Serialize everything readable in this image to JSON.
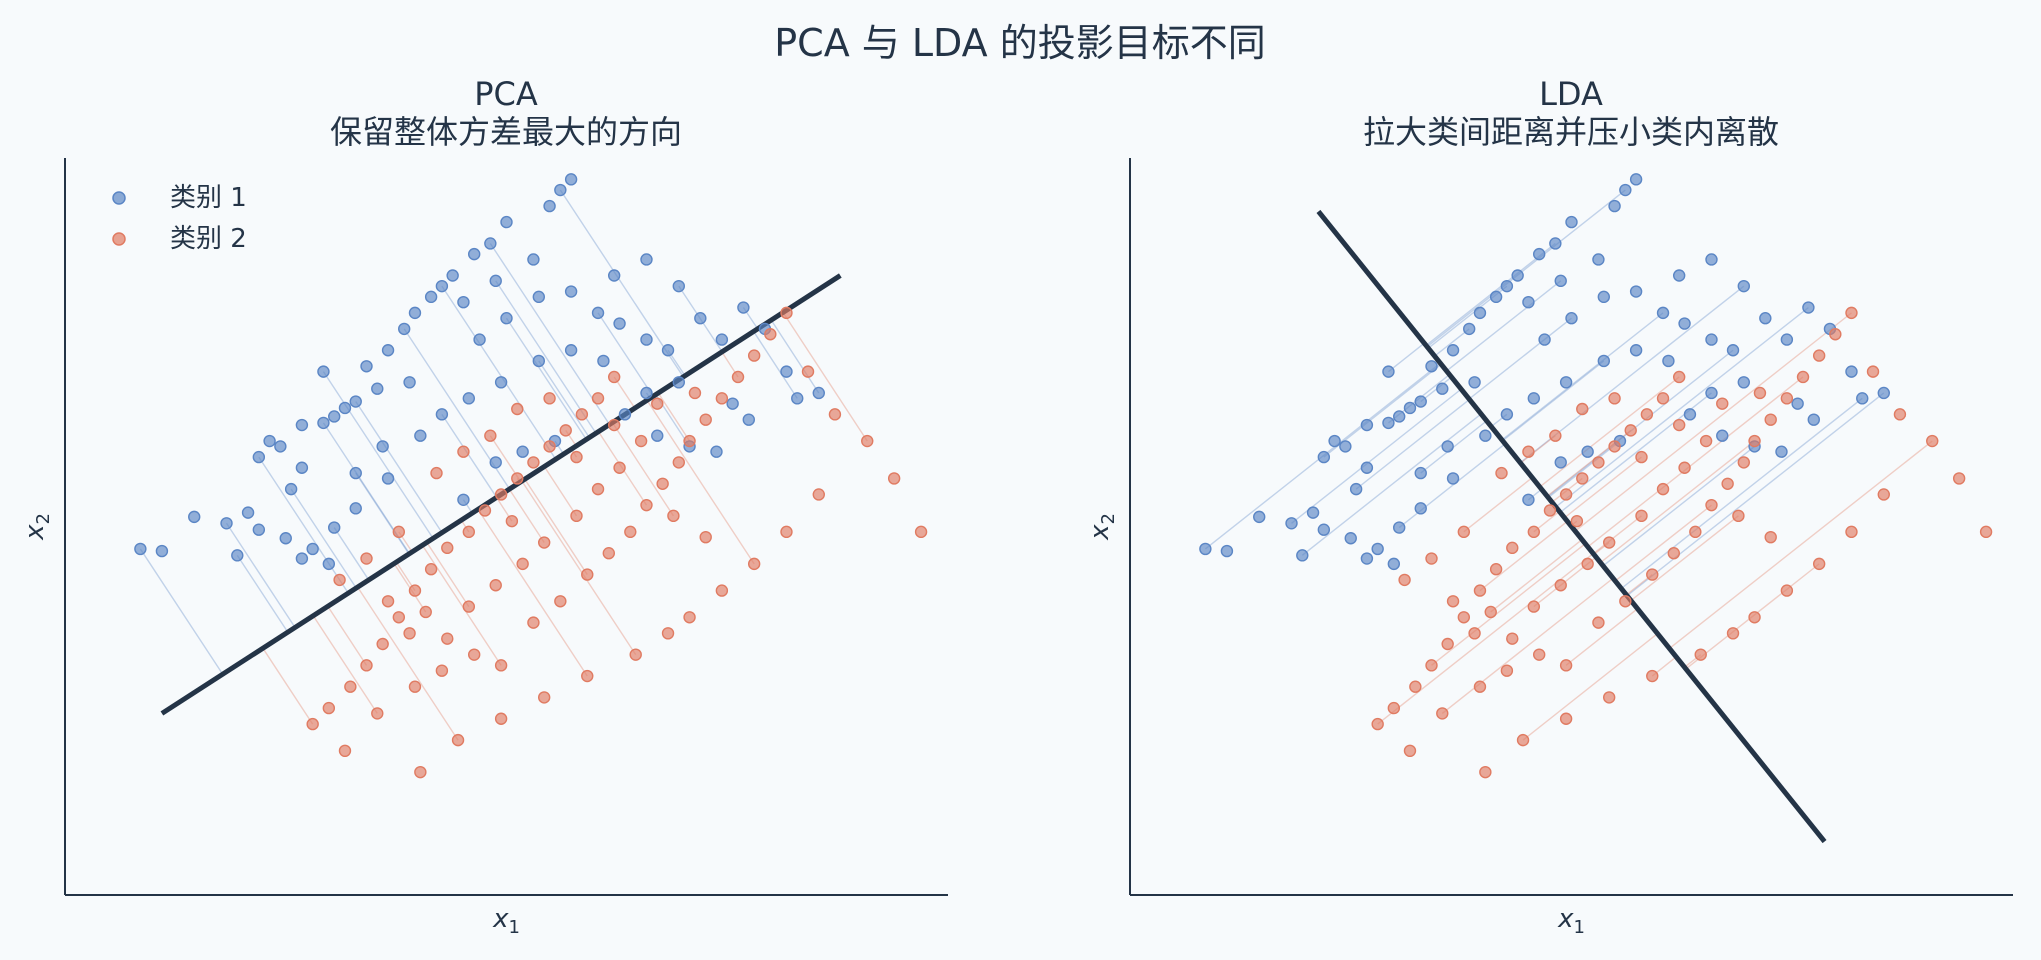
{
  "suptitle": "PCA 与 LDA 的投影目标不同",
  "colors": {
    "class1": "#5b86c5",
    "class2": "#e07b62",
    "axis": "#243447",
    "line": "#243447",
    "background": "#f7fafc"
  },
  "legend": {
    "labels": [
      "类别 1",
      "类别 2"
    ],
    "position": "top-left"
  },
  "chart_data": [
    {
      "type": "scatter",
      "title": "PCA",
      "subtitle": "保留整体方差最大的方向",
      "xlabel": "x₁",
      "ylabel": "x₂",
      "xlim": [
        -3.5,
        4.7
      ],
      "ylim": [
        -3.7,
        3.2
      ],
      "grid": false,
      "legend": "top-left",
      "projection_line": {
        "p1": [
          -2.6,
          -2.0
        ],
        "p2": [
          3.7,
          2.1
        ]
      },
      "projection_direction": [
        0.838,
        0.546
      ],
      "series": [
        {
          "name": "类别 1",
          "points": [
            [
              -2.8,
              -0.46
            ],
            [
              -2.6,
              -0.48
            ],
            [
              -2.3,
              -0.16
            ],
            [
              -2.0,
              -0.22
            ],
            [
              -1.8,
              -0.12
            ],
            [
              -1.7,
              -0.28
            ],
            [
              -1.9,
              -0.52
            ],
            [
              -1.45,
              -0.36
            ],
            [
              -1.2,
              -0.46
            ],
            [
              -1.0,
              -0.26
            ],
            [
              -0.8,
              -0.08
            ],
            [
              -0.5,
              0.2
            ],
            [
              -1.4,
              0.1
            ],
            [
              -1.3,
              0.3
            ],
            [
              -1.5,
              0.5
            ],
            [
              -1.7,
              0.4
            ],
            [
              -1.6,
              0.55
            ],
            [
              -1.3,
              0.7
            ],
            [
              -1.1,
              0.72
            ],
            [
              -1.0,
              0.78
            ],
            [
              -0.9,
              0.86
            ],
            [
              -0.8,
              0.92
            ],
            [
              -0.6,
              1.04
            ],
            [
              -0.3,
              1.1
            ],
            [
              -1.1,
              1.2
            ],
            [
              -0.7,
              1.25
            ],
            [
              -0.5,
              1.4
            ],
            [
              -0.35,
              1.6
            ],
            [
              -0.25,
              1.75
            ],
            [
              -0.1,
              1.9
            ],
            [
              0.0,
              2.0
            ],
            [
              0.1,
              2.1
            ],
            [
              0.3,
              2.3
            ],
            [
              0.45,
              2.4
            ],
            [
              0.6,
              2.6
            ],
            [
              1.0,
              2.75
            ],
            [
              1.1,
              2.9
            ],
            [
              1.2,
              3.0
            ],
            [
              0.85,
              2.25
            ],
            [
              0.5,
              2.05
            ],
            [
              0.2,
              1.85
            ],
            [
              0.35,
              1.5
            ],
            [
              0.6,
              1.7
            ],
            [
              0.9,
              1.9
            ],
            [
              1.2,
              1.95
            ],
            [
              1.45,
              1.75
            ],
            [
              1.65,
              1.65
            ],
            [
              1.9,
              1.5
            ],
            [
              2.1,
              1.4
            ],
            [
              1.6,
              2.1
            ],
            [
              1.9,
              2.25
            ],
            [
              2.2,
              2.0
            ],
            [
              2.4,
              1.7
            ],
            [
              2.6,
              1.5
            ],
            [
              2.8,
              1.8
            ],
            [
              3.0,
              1.6
            ],
            [
              3.2,
              1.2
            ],
            [
              3.5,
              1.0
            ],
            [
              2.7,
              0.9
            ],
            [
              2.2,
              1.1
            ],
            [
              1.9,
              1.0
            ],
            [
              1.7,
              0.8
            ],
            [
              2.0,
              0.6
            ],
            [
              2.3,
              0.5
            ],
            [
              2.55,
              0.45
            ],
            [
              2.85,
              0.75
            ],
            [
              3.3,
              0.95
            ],
            [
              1.5,
              1.3
            ],
            [
              1.2,
              1.4
            ],
            [
              0.9,
              1.3
            ],
            [
              0.55,
              1.1
            ],
            [
              0.25,
              0.95
            ],
            [
              0.0,
              0.8
            ],
            [
              -0.2,
              0.6
            ],
            [
              -0.55,
              0.5
            ],
            [
              -0.8,
              0.25
            ],
            [
              -1.3,
              -0.55
            ],
            [
              -1.05,
              -0.6
            ],
            [
              0.2,
              0.0
            ],
            [
              0.5,
              0.35
            ],
            [
              0.75,
              0.45
            ],
            [
              1.05,
              0.55
            ]
          ]
        },
        {
          "name": "类别 2",
          "points": [
            [
              -1.2,
              -2.1
            ],
            [
              -1.05,
              -1.95
            ],
            [
              -0.85,
              -1.75
            ],
            [
              -0.7,
              -1.55
            ],
            [
              -0.55,
              -1.35
            ],
            [
              -0.4,
              -1.1
            ],
            [
              -0.25,
              -0.85
            ],
            [
              -0.1,
              -0.65
            ],
            [
              0.05,
              -0.45
            ],
            [
              0.25,
              -0.3
            ],
            [
              0.4,
              -0.1
            ],
            [
              0.55,
              0.05
            ],
            [
              0.7,
              0.2
            ],
            [
              0.85,
              0.35
            ],
            [
              1.0,
              0.5
            ],
            [
              1.15,
              0.65
            ],
            [
              1.3,
              0.8
            ],
            [
              1.45,
              0.95
            ],
            [
              1.6,
              1.15
            ],
            [
              -0.5,
              -0.95
            ],
            [
              -0.3,
              -1.25
            ],
            [
              -0.15,
              -1.05
            ],
            [
              0.05,
              -1.3
            ],
            [
              0.3,
              -1.45
            ],
            [
              0.55,
              -1.55
            ],
            [
              0.85,
              -1.15
            ],
            [
              1.1,
              -0.95
            ],
            [
              1.35,
              -0.7
            ],
            [
              1.55,
              -0.5
            ],
            [
              1.75,
              -0.3
            ],
            [
              1.9,
              -0.05
            ],
            [
              2.05,
              0.15
            ],
            [
              2.2,
              0.35
            ],
            [
              2.3,
              0.55
            ],
            [
              2.45,
              0.75
            ],
            [
              2.6,
              0.95
            ],
            [
              2.75,
              1.15
            ],
            [
              2.9,
              1.35
            ],
            [
              3.05,
              1.55
            ],
            [
              3.2,
              1.75
            ],
            [
              3.4,
              1.2
            ],
            [
              3.65,
              0.8
            ],
            [
              3.95,
              0.55
            ],
            [
              4.2,
              0.2
            ],
            [
              4.45,
              -0.3
            ],
            [
              1.25,
              -0.15
            ],
            [
              1.45,
              0.1
            ],
            [
              1.65,
              0.3
            ],
            [
              0.95,
              -0.4
            ],
            [
              0.75,
              -0.6
            ],
            [
              0.5,
              -0.8
            ],
            [
              0.25,
              -1.0
            ],
            [
              0.0,
              -1.6
            ],
            [
              -0.25,
              -1.75
            ],
            [
              -0.6,
              -2.0
            ],
            [
              -0.9,
              -2.35
            ],
            [
              -0.2,
              -2.55
            ],
            [
              0.15,
              -2.25
            ],
            [
              0.55,
              -2.05
            ],
            [
              0.95,
              -1.85
            ],
            [
              1.35,
              -1.65
            ],
            [
              2.3,
              -1.1
            ],
            [
              2.6,
              -0.85
            ],
            [
              2.9,
              -0.6
            ],
            [
              3.2,
              -0.3
            ],
            [
              3.5,
              0.05
            ],
            [
              1.8,
              -1.45
            ],
            [
              2.1,
              -1.25
            ],
            [
              2.45,
              -0.35
            ],
            [
              2.15,
              -0.15
            ],
            [
              1.85,
              0.55
            ],
            [
              1.6,
              0.7
            ],
            [
              1.25,
              0.4
            ],
            [
              1.0,
              0.95
            ],
            [
              0.7,
              0.85
            ],
            [
              0.45,
              0.6
            ],
            [
              0.2,
              0.45
            ],
            [
              -0.05,
              0.25
            ],
            [
              -0.4,
              -0.3
            ],
            [
              -0.7,
              -0.55
            ],
            [
              -0.95,
              -0.75
            ],
            [
              0.65,
              -0.2
            ],
            [
              2.0,
              0.9
            ],
            [
              2.35,
              1.0
            ]
          ]
        }
      ]
    },
    {
      "type": "scatter",
      "title": "LDA",
      "subtitle": "拉大类间距离并压小类内离散",
      "xlabel": "x₁",
      "ylabel": "x₂",
      "xlim": [
        -3.5,
        4.7
      ],
      "ylim": [
        -3.7,
        3.2
      ],
      "grid": false,
      "projection_line": {
        "p1": [
          -1.75,
          2.7
        ],
        "p2": [
          2.95,
          -3.2
        ]
      },
      "projection_direction": [
        0.623,
        -0.782
      ],
      "series": [
        {
          "name": "类别 1",
          "same_as_panel": 0
        },
        {
          "name": "类别 2",
          "same_as_panel": 0
        }
      ]
    }
  ],
  "axis_labels": {
    "pca_x_sub": "1",
    "pca_y_sub": "2",
    "lda_x_sub": "1",
    "lda_y_sub": "2",
    "var": "x"
  }
}
